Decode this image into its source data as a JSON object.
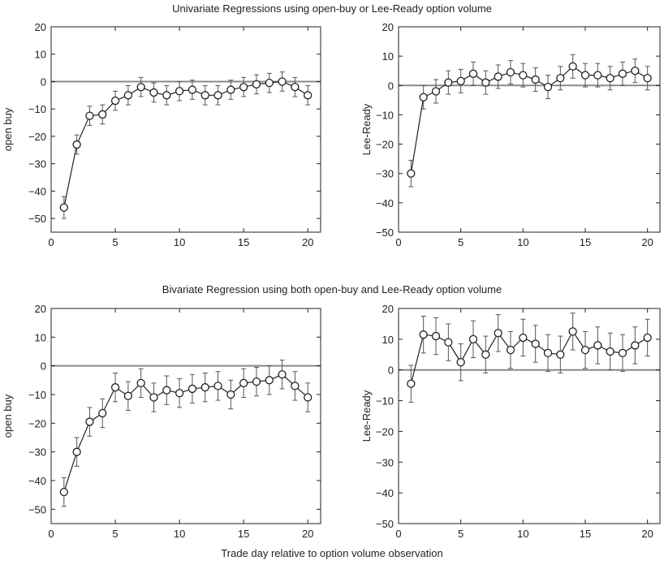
{
  "figure": {
    "row_titles": [
      "Univariate Regressions using open-buy or Lee-Ready option volume",
      "Bivariate Regression using both open-buy and Lee-Ready option volume"
    ],
    "xlabel": "Trade day relative to option volume observation"
  },
  "colors": {
    "series": "#222222",
    "zero_line": "#8a8a8a",
    "errorbar": "#555555"
  },
  "chart_data": [
    {
      "type": "line",
      "ylabel": "open buy",
      "xlim": [
        0,
        21
      ],
      "ylim": [
        -55,
        20
      ],
      "xticks": [
        0,
        5,
        10,
        15,
        20
      ],
      "yticks": [
        20,
        10,
        0,
        -10,
        -20,
        -30,
        -40,
        -50
      ],
      "reference_line_y": 0,
      "x": [
        1,
        2,
        3,
        4,
        5,
        6,
        7,
        8,
        9,
        10,
        11,
        12,
        13,
        14,
        15,
        16,
        17,
        18,
        19,
        20
      ],
      "y": [
        -46,
        -23,
        -12.5,
        -12,
        -7,
        -5,
        -2,
        -4,
        -5,
        -3.5,
        -3,
        -5,
        -5,
        -3,
        -2,
        -1,
        -0.5,
        0,
        -2,
        -5
      ],
      "error": [
        4,
        3.5,
        3.5,
        3.5,
        3.5,
        3.5,
        3.5,
        3.5,
        3.5,
        3.5,
        3.5,
        3.5,
        3.5,
        3.5,
        3.5,
        3.5,
        3.5,
        3.5,
        3.5,
        3.5
      ]
    },
    {
      "type": "line",
      "ylabel": "Lee-Ready",
      "xlim": [
        0,
        21
      ],
      "ylim": [
        -50,
        20
      ],
      "xticks": [
        0,
        5,
        10,
        15,
        20
      ],
      "yticks": [
        20,
        10,
        0,
        -10,
        -20,
        -30,
        -40,
        -50
      ],
      "reference_line_y": 0,
      "x": [
        1,
        2,
        3,
        4,
        5,
        6,
        7,
        8,
        9,
        10,
        11,
        12,
        13,
        14,
        15,
        16,
        17,
        18,
        19,
        20
      ],
      "y": [
        -30,
        -4,
        -2,
        1,
        1.5,
        4,
        1,
        3,
        4.5,
        3.5,
        2,
        -0.5,
        2.5,
        6.5,
        3.5,
        3.5,
        2.5,
        4,
        5,
        2.5
      ],
      "error": [
        4.5,
        4,
        4,
        4,
        4,
        4,
        4,
        4,
        4,
        4,
        4,
        4,
        4,
        4,
        4,
        4,
        4,
        4,
        4,
        4
      ]
    },
    {
      "type": "line",
      "ylabel": "open buy",
      "xlim": [
        0,
        21
      ],
      "ylim": [
        -55,
        20
      ],
      "xticks": [
        0,
        5,
        10,
        15,
        20
      ],
      "yticks": [
        20,
        10,
        0,
        -10,
        -20,
        -30,
        -40,
        -50
      ],
      "reference_line_y": 0,
      "x": [
        1,
        2,
        3,
        4,
        5,
        6,
        7,
        8,
        9,
        10,
        11,
        12,
        13,
        14,
        15,
        16,
        17,
        18,
        19,
        20
      ],
      "y": [
        -44,
        -30,
        -19.5,
        -16.5,
        -7.5,
        -10.5,
        -6,
        -11,
        -8.5,
        -9.5,
        -8,
        -7.5,
        -7,
        -10,
        -6,
        -5.5,
        -5,
        -3,
        -7,
        -11
      ],
      "error": [
        5,
        5,
        5,
        5,
        5,
        5,
        5,
        5,
        5,
        5,
        5,
        5,
        5,
        5,
        5,
        5,
        5,
        5,
        5,
        5
      ]
    },
    {
      "type": "line",
      "ylabel": "Lee-Ready",
      "xlim": [
        0,
        21
      ],
      "ylim": [
        -50,
        20
      ],
      "xticks": [
        0,
        5,
        10,
        15,
        20
      ],
      "yticks": [
        20,
        10,
        0,
        -10,
        -20,
        -30,
        -40,
        -50
      ],
      "reference_line_y": 0,
      "x": [
        1,
        2,
        3,
        4,
        5,
        6,
        7,
        8,
        9,
        10,
        11,
        12,
        13,
        14,
        15,
        16,
        17,
        18,
        19,
        20
      ],
      "y": [
        -4.5,
        11.5,
        11,
        9,
        2.5,
        10,
        5,
        12,
        6.5,
        10.5,
        8.5,
        5.5,
        5,
        12.5,
        6.5,
        8,
        6,
        5.5,
        8,
        10.5
      ],
      "error": [
        6,
        6,
        6,
        6,
        6,
        6,
        6,
        6,
        6,
        6,
        6,
        6,
        6,
        6,
        6,
        6,
        6,
        6,
        6,
        6
      ]
    }
  ]
}
